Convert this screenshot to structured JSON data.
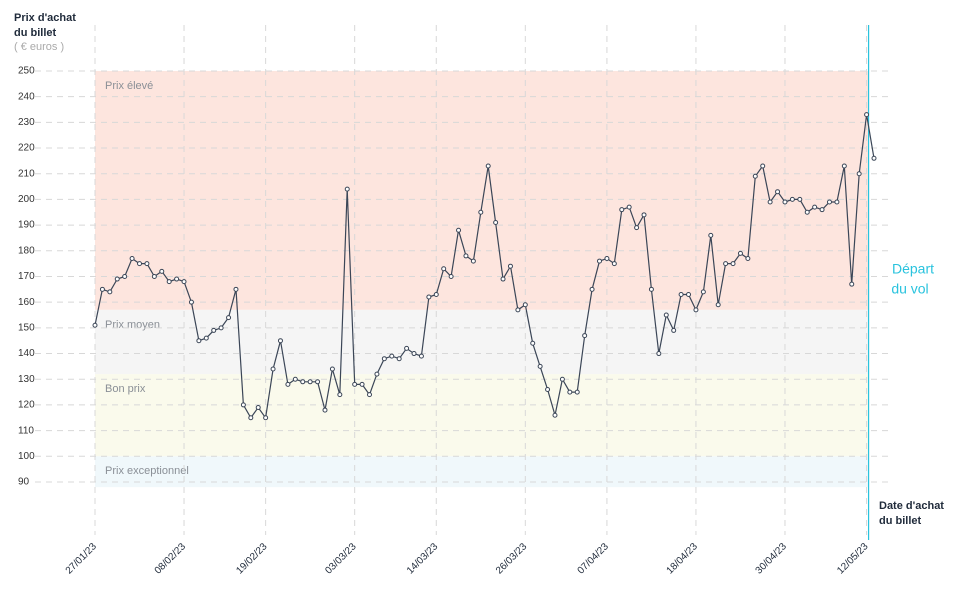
{
  "chart_data": {
    "type": "line",
    "y_title": [
      "Prix d'achat",
      "du billet"
    ],
    "y_unit": "( € euros )",
    "x_title": [
      "Date d'achat",
      "du billet"
    ],
    "annotation": [
      "Départ",
      "du vol"
    ],
    "categories": [
      "27/01/23",
      null,
      null,
      null,
      null,
      null,
      null,
      null,
      null,
      null,
      null,
      null,
      "08/02/23",
      null,
      null,
      null,
      null,
      null,
      null,
      null,
      null,
      null,
      null,
      "19/02/23",
      null,
      null,
      null,
      null,
      null,
      null,
      null,
      null,
      null,
      null,
      null,
      "03/03/23",
      null,
      null,
      null,
      null,
      null,
      null,
      null,
      null,
      null,
      null,
      "14/03/23",
      null,
      null,
      null,
      null,
      null,
      null,
      null,
      null,
      null,
      null,
      null,
      "26/03/23",
      null,
      null,
      null,
      null,
      null,
      null,
      null,
      null,
      null,
      null,
      "07/04/23",
      null,
      null,
      null,
      null,
      null,
      null,
      null,
      null,
      null,
      null,
      null,
      "18/04/23",
      null,
      null,
      null,
      null,
      null,
      null,
      null,
      null,
      null,
      null,
      null,
      "30/04/23",
      null,
      null,
      null,
      null,
      null,
      null,
      null,
      null,
      null,
      null,
      "12/05/23",
      null
    ],
    "series": [
      {
        "color": "#3b4657",
        "values": [
          151,
          165,
          164,
          169,
          170,
          177,
          175,
          175,
          170,
          172,
          168,
          169,
          168,
          160,
          145,
          146,
          149,
          150,
          154,
          165,
          120,
          115,
          119,
          115,
          134,
          145,
          128,
          130,
          129,
          129,
          129,
          118,
          134,
          124,
          204,
          128,
          128,
          124,
          132,
          138,
          139,
          138,
          142,
          140,
          139,
          162,
          163,
          173,
          170,
          188,
          178,
          176,
          195,
          213,
          191,
          169,
          174,
          157,
          159,
          144,
          135,
          126,
          116,
          130,
          125,
          125,
          147,
          165,
          176,
          177,
          175,
          196,
          197,
          189,
          194,
          165,
          140,
          155,
          149,
          163,
          163,
          157,
          164,
          186,
          159,
          175,
          175,
          179,
          177,
          209,
          213,
          199,
          203,
          199,
          200,
          200,
          195,
          197,
          196,
          199,
          199,
          213,
          167,
          210,
          233,
          216
        ]
      }
    ],
    "bands": [
      {
        "label": "Prix élevé",
        "from": 157,
        "to": 250,
        "color": "#fde5de"
      },
      {
        "label": "Prix moyen",
        "from": 132,
        "to": 157,
        "color": "#f5f5f5"
      },
      {
        "label": "Bon prix",
        "from": 100,
        "to": 132,
        "color": "#fafaec"
      },
      {
        "label": "Prix exceptionnel",
        "from": 88,
        "to": 100,
        "color": "#f0f8fb"
      }
    ],
    "ylim": [
      80,
      250
    ],
    "yticks": [
      90,
      100,
      110,
      120,
      130,
      140,
      150,
      160,
      170,
      180,
      190,
      200,
      210,
      220,
      230,
      240,
      250
    ],
    "grid": true,
    "annotation_color": "#29c3de"
  }
}
